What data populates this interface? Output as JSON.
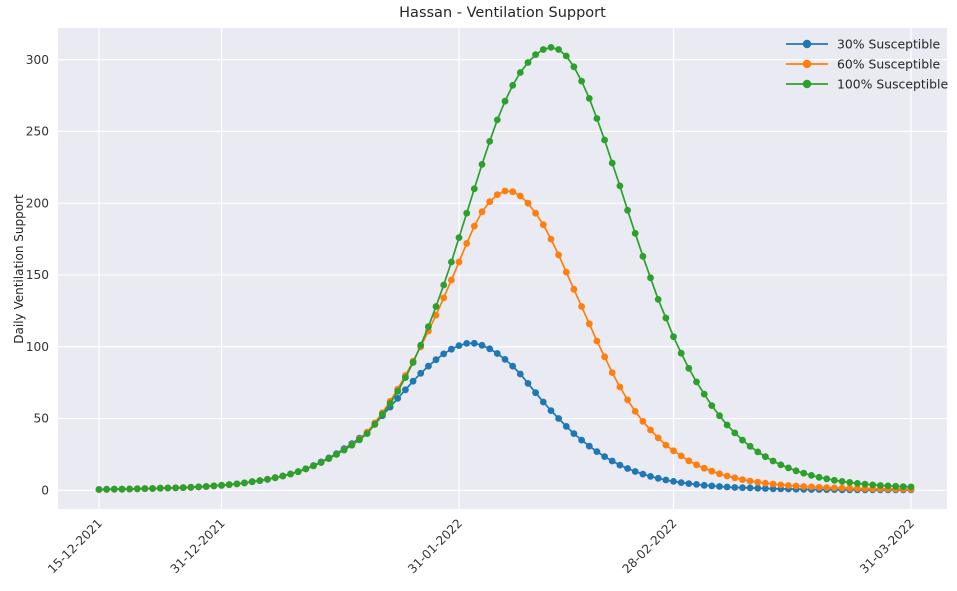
{
  "title": "Hassan - Ventilation Support",
  "style": {
    "figure_bg": "#ffffff",
    "plot_bg": "#eaeaf2",
    "grid_color": "#ffffff",
    "text_color": "#262626",
    "tick_label_color": "#333333"
  },
  "chart_data": {
    "type": "line",
    "title": "Hassan - Ventilation Support",
    "xlabel": "",
    "ylabel": "Daily Ventilation Support",
    "x_unit": "daily points, day 0 = 15-12-2021, day 106 = 31-03-2022",
    "grid": true,
    "marker": "circle",
    "legend_position": "upper right",
    "xlim_days": [
      -5.35,
      110.7
    ],
    "ylim": [
      -13,
      322
    ],
    "y_ticks": [
      0,
      50,
      100,
      150,
      200,
      250,
      300
    ],
    "x_ticks": [
      {
        "label": "15-12-2021",
        "day": 0
      },
      {
        "label": "31-12-2021",
        "day": 16
      },
      {
        "label": "31-01-2022",
        "day": 47
      },
      {
        "label": "28-02-2022",
        "day": 75
      },
      {
        "label": "31-03-2022",
        "day": 106
      }
    ],
    "series": [
      {
        "name": "30% Susceptible",
        "color": "#1f77b4",
        "peak": {
          "value": 102.4,
          "day": 49,
          "date": "02-02-2022"
        },
        "values": [
          0.6,
          0.7,
          0.8,
          0.8,
          0.9,
          1.1,
          1.2,
          1.3,
          1.5,
          1.6,
          1.7,
          1.9,
          2.1,
          2.4,
          2.7,
          3.1,
          3.5,
          4,
          4.5,
          5.2,
          6,
          6.8,
          7.7,
          8.8,
          10,
          11.4,
          13,
          14.9,
          17.3,
          19.8,
          22.6,
          25.6,
          29,
          32.5,
          36.3,
          40,
          46,
          52,
          58,
          64,
          70,
          76,
          81.5,
          86.5,
          91,
          95,
          98.3,
          100.8,
          102.3,
          102.4,
          101,
          98.6,
          95.3,
          91.2,
          86.5,
          81,
          74.5,
          68,
          61.5,
          55.5,
          50,
          44.5,
          39.5,
          35,
          30.8,
          27,
          23.5,
          20.4,
          17.6,
          15.2,
          13.1,
          11.3,
          9.7,
          8.4,
          7.2,
          6.2,
          5.4,
          4.7,
          4.1,
          3.5,
          3.1,
          2.7,
          2.3,
          2,
          1.8,
          1.7,
          1.5,
          1.3,
          1.1,
          1,
          0.9,
          0.8,
          0.7,
          0.6,
          0.6,
          0.5,
          0.5,
          0.4,
          0.4,
          0.4,
          0.3,
          0.3,
          0.3,
          0.3,
          0.3,
          0.3,
          0.3
        ]
      },
      {
        "name": "60% Susceptible",
        "color": "#ff7f0e",
        "peak": {
          "value": 208.5,
          "day": 53,
          "date": "06-02-2022"
        },
        "values": [
          0.6,
          0.7,
          0.8,
          0.8,
          0.9,
          1.1,
          1.2,
          1.3,
          1.5,
          1.6,
          1.7,
          1.9,
          2.1,
          2.4,
          2.7,
          3.1,
          3.5,
          4,
          4.5,
          5.2,
          6,
          6.8,
          7.7,
          8.8,
          10,
          11.4,
          13,
          14.9,
          17,
          19.4,
          22.1,
          25,
          28.2,
          31.7,
          35.6,
          40.5,
          47,
          54,
          62,
          70.5,
          80,
          90,
          100,
          111,
          122,
          134,
          146.5,
          159,
          172,
          184,
          194,
          201,
          206,
          208.5,
          208,
          205,
          200,
          193,
          185,
          175,
          164,
          152,
          140,
          128,
          116,
          104,
          93,
          82,
          72,
          63,
          55,
          48,
          42,
          36.5,
          31.5,
          27.5,
          24,
          20.6,
          17.8,
          15.4,
          13.3,
          11.5,
          10,
          8.7,
          7.5,
          6.5,
          5.7,
          5,
          4.4,
          3.8,
          3.4,
          3,
          2.7,
          2.4,
          2.1,
          1.9,
          1.7,
          1.6,
          1.4,
          1.3,
          1.2,
          1.1,
          1,
          1,
          0.9,
          0.9,
          0.8
        ]
      },
      {
        "name": "100% Susceptible",
        "color": "#2ca02c",
        "peak": {
          "value": 308.5,
          "day": 59,
          "date": "12-02-2022"
        },
        "values": [
          0.6,
          0.7,
          0.8,
          0.8,
          0.9,
          1.1,
          1.2,
          1.3,
          1.5,
          1.6,
          1.7,
          1.9,
          2.1,
          2.4,
          2.7,
          3.1,
          3.5,
          4,
          4.5,
          5.2,
          6,
          6.8,
          7.7,
          8.8,
          10,
          11.4,
          13,
          14.9,
          17,
          19.4,
          22.1,
          25,
          28,
          31.4,
          35.2,
          39.5,
          46,
          53,
          60.5,
          69,
          78.5,
          89,
          101,
          114,
          128,
          143,
          159,
          176,
          193,
          210,
          227,
          243,
          258,
          271,
          282,
          291,
          298,
          303.5,
          307,
          308.5,
          307,
          302.5,
          295,
          285,
          273,
          259,
          244,
          228,
          212,
          195,
          179,
          163,
          148,
          133,
          120,
          107,
          95.5,
          85,
          75.5,
          67,
          59,
          52,
          45.5,
          40,
          35,
          30.7,
          26.8,
          23.4,
          20.4,
          17.8,
          15.6,
          13.6,
          11.9,
          10.4,
          9.1,
          8,
          7,
          6.2,
          5.5,
          4.8,
          4.3,
          3.8,
          3.4,
          3.1,
          2.8,
          2.6,
          2.4
        ]
      }
    ]
  }
}
